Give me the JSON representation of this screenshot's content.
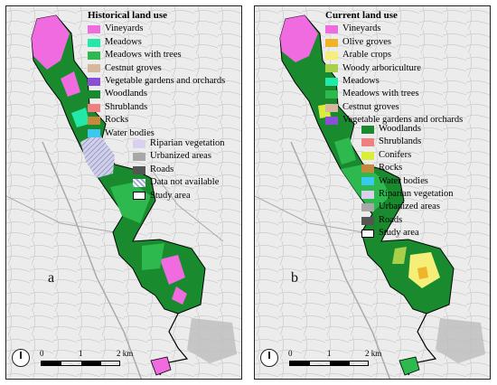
{
  "panel_a": {
    "title": "Historical land use",
    "letter": "a",
    "legend_main": [
      {
        "label": "Vineyards",
        "color": "#f06ae0"
      },
      {
        "label": "Meadows",
        "color": "#22e8a8"
      },
      {
        "label": "Meadows with trees",
        "color": "#2db94e"
      },
      {
        "label": "Cestnut groves",
        "color": "#d7b89c"
      },
      {
        "label": "Vegetable gardens and orchards",
        "color": "#8a4fd6"
      },
      {
        "label": "Woodlands",
        "color": "#1a8a2e"
      },
      {
        "label": "Shrublands",
        "color": "#f08080"
      },
      {
        "label": "Rocks",
        "color": "#c48a3a"
      },
      {
        "label": "Water bodies",
        "color": "#38c8f0"
      }
    ],
    "legend_sub": [
      {
        "label": "Riparian vegetation",
        "color": "#d9d0f0",
        "style": "fill"
      },
      {
        "label": "Urbanized areas",
        "color": "#a8a8a8",
        "style": "fill"
      },
      {
        "label": "Roads",
        "color": "#555555",
        "style": "fill"
      },
      {
        "label": "Data not available",
        "color": "#a0a8d8",
        "style": "hatch"
      },
      {
        "label": "Study area",
        "color": "#000000",
        "style": "outline"
      }
    ],
    "scale": {
      "t0": "0",
      "t1": "1",
      "t2": "2 km"
    }
  },
  "panel_b": {
    "title": "Current land use",
    "letter": "b",
    "legend_main": [
      {
        "label": "Vineyards",
        "color": "#f06ae0"
      },
      {
        "label": "Olive groves",
        "color": "#f0b428"
      },
      {
        "label": "Arable crops",
        "color": "#f5ef7a"
      },
      {
        "label": "Woody arboriculture",
        "color": "#a8d048"
      },
      {
        "label": "Meadows",
        "color": "#22e8a8"
      },
      {
        "label": "Meadows with trees",
        "color": "#2db94e"
      },
      {
        "label": "Cestnut groves",
        "color": "#d7b89c"
      },
      {
        "label": "Vegetable gardens and orchards",
        "color": "#8a4fd6"
      }
    ],
    "legend_sub": [
      {
        "label": "Woodlands",
        "color": "#1a8a2e",
        "style": "fill"
      },
      {
        "label": "Shrublands",
        "color": "#f08080",
        "style": "fill"
      },
      {
        "label": "Conifers",
        "color": "#d8ee3a",
        "style": "fill"
      },
      {
        "label": "Rocks",
        "color": "#c48a3a",
        "style": "fill"
      },
      {
        "label": "Water bodies",
        "color": "#38c8f0",
        "style": "fill"
      },
      {
        "label": "Riparian vegetation",
        "color": "#d9d0f0",
        "style": "fill"
      },
      {
        "label": "Urbanized areas",
        "color": "#a8a8a8",
        "style": "fill"
      },
      {
        "label": "Roads",
        "color": "#555555",
        "style": "fill"
      },
      {
        "label": "Study area",
        "color": "#000000",
        "style": "outline"
      }
    ],
    "scale": {
      "t0": "0",
      "t1": "1",
      "t2": "2 km"
    }
  }
}
